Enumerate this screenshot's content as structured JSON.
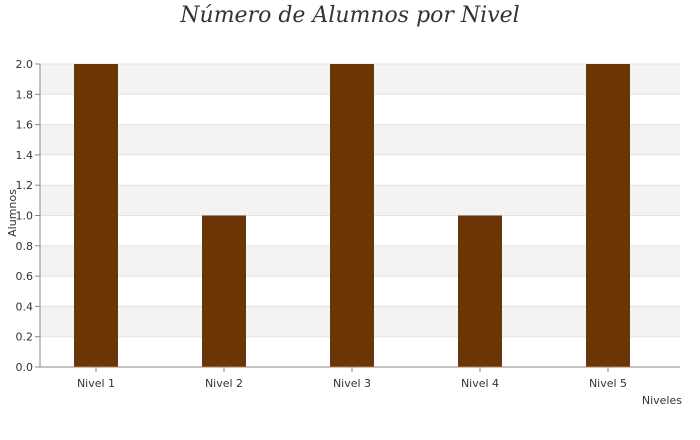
{
  "chart_data": {
    "type": "bar",
    "title": "Número de Alumnos por Nivel",
    "xlabel": "Niveles",
    "ylabel": "Alumnos",
    "categories": [
      "Nivel 1",
      "Nivel 2",
      "Nivel 3",
      "Nivel 4",
      "Nivel 5"
    ],
    "values": [
      2,
      1,
      2,
      1,
      2
    ],
    "ylim": [
      0,
      2
    ],
    "yticks": [
      "0.0",
      "0.2",
      "0.4",
      "0.6",
      "0.8",
      "1.0",
      "1.2",
      "1.4",
      "1.6",
      "1.8",
      "2.0"
    ],
    "grid": true,
    "legend": "none",
    "colors": {
      "bar": "#6b3506",
      "band": "#f3f3f3",
      "gridline": "#e2e2e2",
      "axis": "#888888"
    }
  }
}
